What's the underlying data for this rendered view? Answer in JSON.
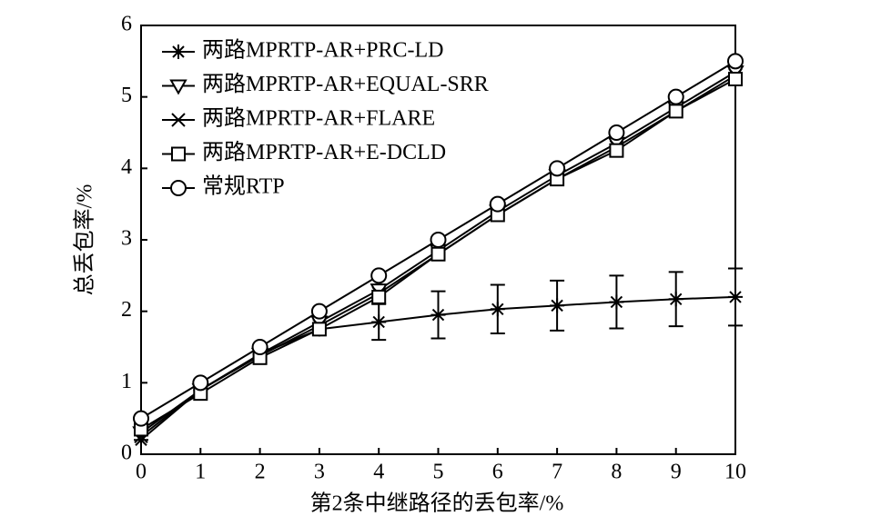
{
  "chart_data": {
    "type": "line",
    "xlabel": "第2条中继路径的丢包率/%",
    "ylabel": "总丢包率/%",
    "x": [
      0,
      1,
      2,
      3,
      4,
      5,
      6,
      7,
      8,
      9,
      10
    ],
    "xlim": [
      0,
      10
    ],
    "xticks": [
      0,
      1,
      2,
      3,
      4,
      5,
      6,
      7,
      8,
      9,
      10
    ],
    "ylim": [
      0,
      6
    ],
    "yticks": [
      0,
      1,
      2,
      3,
      4,
      5,
      6
    ],
    "legend": "upper-left",
    "series": [
      {
        "name": "两路MPRTP-AR+PRC-LD",
        "color": "#000000",
        "marker": "asterisk",
        "values": [
          0.2,
          0.9,
          1.4,
          1.75,
          1.85,
          1.95,
          2.03,
          2.08,
          2.13,
          2.17,
          2.2
        ],
        "errors": [
          null,
          null,
          null,
          null,
          0.25,
          0.33,
          0.34,
          0.35,
          0.37,
          0.38,
          0.4
        ]
      },
      {
        "name": "两路MPRTP-AR+EQUAL-SRR",
        "color": "#000000",
        "marker": "triangle-down",
        "values": [
          0.3,
          0.9,
          1.4,
          1.85,
          2.3,
          2.85,
          3.4,
          3.9,
          4.35,
          4.85,
          5.35
        ]
      },
      {
        "name": "两路MPRTP-AR+FLARE",
        "color": "#000000",
        "marker": "x",
        "values": [
          0.25,
          0.9,
          1.38,
          1.8,
          2.25,
          2.8,
          3.35,
          3.85,
          4.3,
          4.8,
          5.3
        ]
      },
      {
        "name": "两路MPRTP-AR+E-DCLD",
        "color": "#000000",
        "marker": "square",
        "values": [
          0.35,
          0.85,
          1.35,
          1.75,
          2.2,
          2.8,
          3.35,
          3.85,
          4.25,
          4.8,
          5.25
        ]
      },
      {
        "name": "常规RTP",
        "color": "#000000",
        "marker": "circle",
        "values": [
          0.5,
          1.0,
          1.5,
          2.0,
          2.5,
          3.0,
          3.5,
          4.0,
          4.5,
          5.0,
          5.5
        ]
      }
    ]
  }
}
